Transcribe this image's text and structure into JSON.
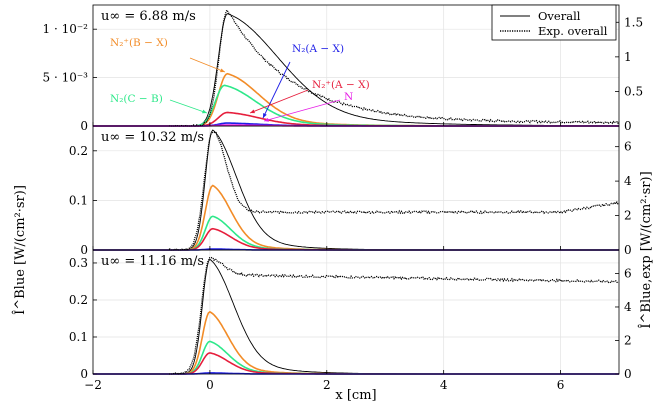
{
  "chart_data": {
    "type": "line",
    "xlabel": "x [cm]",
    "xlim": [
      -2,
      7
    ],
    "x_ticks": [
      "−2",
      "0",
      "2",
      "4",
      "6"
    ],
    "ylabel_left": "Î^Blue [W/(cm²·sr)]",
    "ylabel_right": "Î^Blue,exp [W/(cm²·sr)]",
    "legend": {
      "position": "top-right",
      "entries": [
        "Overall",
        "Exp. overall"
      ]
    },
    "grid": true,
    "colors": {
      "overall": "#000000",
      "exp_overall": "#000000",
      "N2p_B_X": "#f28c28",
      "N2_C_B": "#2ee88a",
      "N2_A_X": "#1e1ee6",
      "N2p_A_X": "#e61e3c",
      "N": "#e61ee6"
    },
    "panels": [
      {
        "label": "u∞ = 6.88 m/s",
        "ylim_left": [
          0,
          0.0125
        ],
        "ylim_right": [
          0,
          1.75
        ],
        "y_ticks_left": [
          {
            "v": 0,
            "t": "0"
          },
          {
            "v": 0.005,
            "t": "5 · 10⁻³"
          },
          {
            "v": 0.01,
            "t": "1 · 10⁻²"
          }
        ],
        "y_ticks_right": [
          {
            "v": 0,
            "t": "0"
          },
          {
            "v": 0.5,
            "t": "0.5"
          },
          {
            "v": 1,
            "t": "1"
          },
          {
            "v": 1.5,
            "t": "1.5"
          }
        ],
        "annotations": [
          {
            "text": "N₂⁺(B − X)",
            "color": "#f28c28"
          },
          {
            "text": "N₂(A − X)",
            "color": "#1e1ee6"
          },
          {
            "text": "N₂⁺(A − X)",
            "color": "#e61e3c"
          },
          {
            "text": "N₂(C − B)",
            "color": "#2ee88a"
          },
          {
            "text": "N",
            "color": "#e61ee6"
          }
        ],
        "series": [
          {
            "name": "Overall",
            "peak_x": 0.3,
            "peak": 0.0116
          },
          {
            "name": "N₂⁺(B − X)",
            "peak_x": 0.3,
            "peak": 0.0054
          },
          {
            "name": "N₂(C − B)",
            "peak_x": 0.25,
            "peak": 0.0042
          },
          {
            "name": "N₂⁺(A − X)",
            "peak_x": 0.3,
            "peak": 0.0014
          },
          {
            "name": "N₂(A − X)",
            "peak_x": 0.3,
            "peak": 0.0003
          },
          {
            "name": "N",
            "peak_x": 0.3,
            "peak": 0.0001
          }
        ],
        "exp_overall": {
          "peak_x": 0.3,
          "peak": 1.68,
          "plateau": 0.05
        }
      },
      {
        "label": "u∞ = 10.32 m/s",
        "ylim_left": [
          0,
          0.25
        ],
        "ylim_right": [
          0,
          7.2
        ],
        "y_ticks_left": [
          {
            "v": 0,
            "t": "0"
          },
          {
            "v": 0.1,
            "t": "0.1"
          },
          {
            "v": 0.2,
            "t": "0.2"
          }
        ],
        "y_ticks_right": [
          {
            "v": 0,
            "t": "0"
          },
          {
            "v": 2,
            "t": "2"
          },
          {
            "v": 4,
            "t": "4"
          },
          {
            "v": 6,
            "t": "6"
          }
        ],
        "series": [
          {
            "name": "Overall",
            "peak_x": 0.05,
            "peak": 0.242
          },
          {
            "name": "N₂⁺(B − X)",
            "peak_x": 0.05,
            "peak": 0.13
          },
          {
            "name": "N₂(C − B)",
            "peak_x": 0.05,
            "peak": 0.068
          },
          {
            "name": "N₂⁺(A − X)",
            "peak_x": 0.05,
            "peak": 0.043
          },
          {
            "name": "N₂(A − X)",
            "peak_x": 0.05,
            "peak": 0.002
          }
        ],
        "exp_overall": {
          "peak_x": 0.05,
          "peak": 6.9,
          "plateau": 2.2
        }
      },
      {
        "label": "u∞ = 11.16 m/s",
        "ylim_left": [
          0,
          0.335
        ],
        "ylim_right": [
          0,
          7.4
        ],
        "y_ticks_left": [
          {
            "v": 0,
            "t": "0"
          },
          {
            "v": 0.1,
            "t": "0.1"
          },
          {
            "v": 0.2,
            "t": "0.2"
          },
          {
            "v": 0.3,
            "t": "0.3"
          }
        ],
        "y_ticks_right": [
          {
            "v": 0,
            "t": "0"
          },
          {
            "v": 2,
            "t": "2"
          },
          {
            "v": 4,
            "t": "4"
          },
          {
            "v": 6,
            "t": "6"
          }
        ],
        "series": [
          {
            "name": "Overall",
            "peak_x": 0.0,
            "peak": 0.31
          },
          {
            "name": "N₂⁺(B − X)",
            "peak_x": 0.0,
            "peak": 0.168
          },
          {
            "name": "N₂(C − B)",
            "peak_x": 0.0,
            "peak": 0.088
          },
          {
            "name": "N₂⁺(A − X)",
            "peak_x": 0.0,
            "peak": 0.057
          },
          {
            "name": "N₂(A − X)",
            "peak_x": 0.0,
            "peak": 0.003
          }
        ],
        "exp_overall": {
          "peak_x": 0.0,
          "peak": 6.9,
          "plateau": 5.1
        }
      }
    ]
  }
}
